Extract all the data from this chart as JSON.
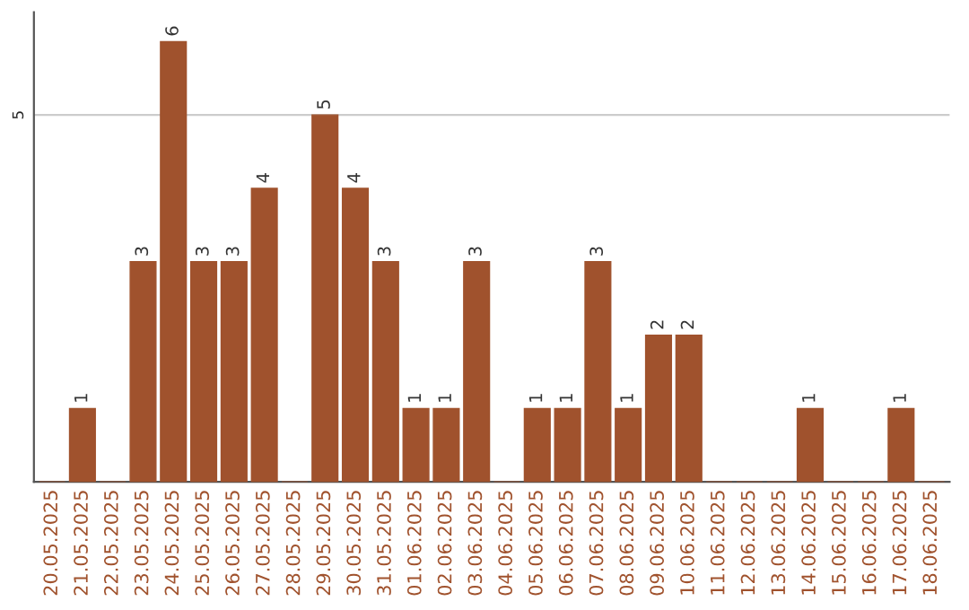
{
  "chart_data": {
    "type": "bar",
    "categories": [
      "20.05.2025",
      "21.05.2025",
      "22.05.2025",
      "23.05.2025",
      "24.05.2025",
      "25.05.2025",
      "26.05.2025",
      "27.05.2025",
      "28.05.2025",
      "29.05.2025",
      "30.05.2025",
      "31.05.2025",
      "01.06.2025",
      "02.06.2025",
      "03.06.2025",
      "04.06.2025",
      "05.06.2025",
      "06.06.2025",
      "07.06.2025",
      "08.06.2025",
      "09.06.2025",
      "10.06.2025",
      "11.06.2025",
      "12.06.2025",
      "13.06.2025",
      "14.06.2025",
      "15.06.2025",
      "16.06.2025",
      "17.06.2025",
      "18.06.2025"
    ],
    "values": [
      0,
      1,
      0,
      3,
      6,
      3,
      3,
      4,
      0,
      5,
      4,
      3,
      1,
      1,
      3,
      0,
      1,
      1,
      3,
      1,
      2,
      2,
      0,
      0,
      0,
      1,
      0,
      0,
      1,
      0
    ],
    "value_labels": [
      null,
      "1",
      null,
      "3",
      "6",
      "3",
      "3",
      "4",
      null,
      "5",
      "4",
      "3",
      "1",
      "1",
      "3",
      null,
      "1",
      "1",
      "3",
      "1",
      "2",
      "2",
      null,
      null,
      null,
      "1",
      null,
      null,
      "1",
      null
    ],
    "color": "#a0522d",
    "ylim": [
      0,
      6.4
    ],
    "yticks": [
      5
    ],
    "grid": "y"
  }
}
